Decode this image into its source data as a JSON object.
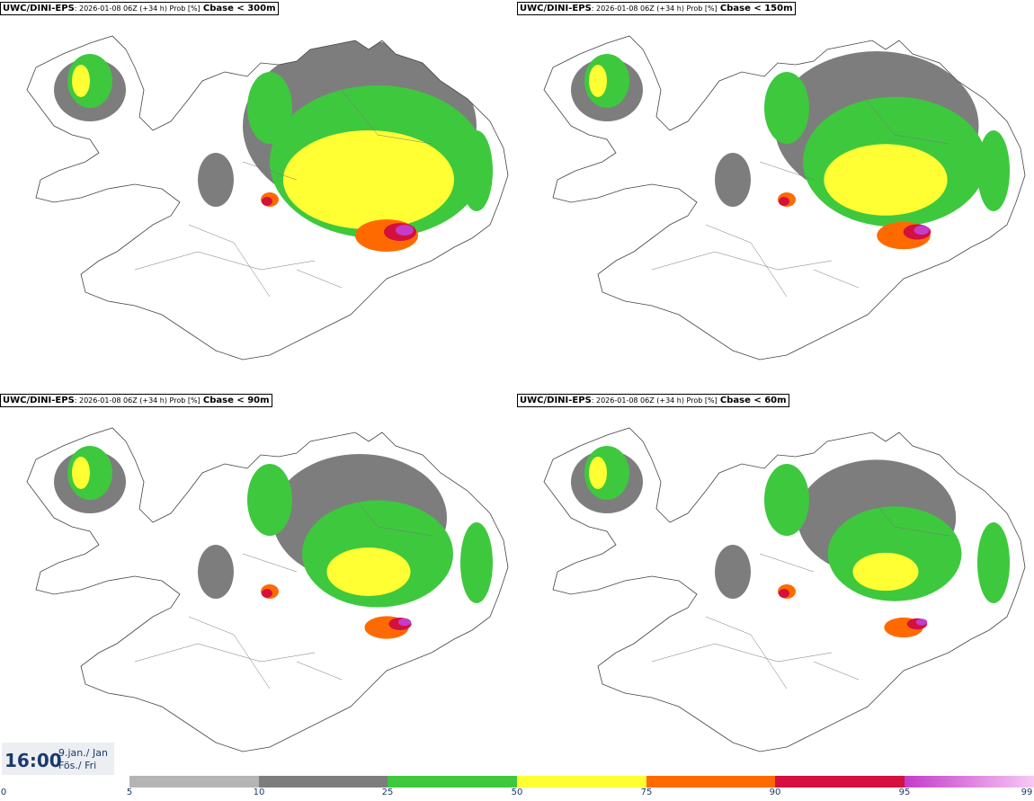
{
  "panels": [
    {
      "model": "UWC/DINI-EPS",
      "run": ": 2026-01-08 06Z (+34 h) Prob [%]",
      "field": "Cbase < 300m"
    },
    {
      "model": "UWC/DINI-EPS",
      "run": ": 2026-01-08 06Z (+34 h) Prob [%]",
      "field": "Cbase < 150m"
    },
    {
      "model": "UWC/DINI-EPS",
      "run": ": 2026-01-08 06Z (+34 h) Prob [%]",
      "field": "Cbase < 90m"
    },
    {
      "model": "UWC/DINI-EPS",
      "run": ": 2026-01-08 06Z (+34 h) Prob [%]",
      "field": "Cbase < 60m"
    }
  ],
  "valid_time": {
    "time": "16:00",
    "date": "9.jan./ Jan",
    "weekday": "Fös./ Fri"
  },
  "legend": {
    "ticks": [
      "0",
      "5",
      "10",
      "25",
      "50",
      "75",
      "90",
      "95",
      "99"
    ],
    "colors": [
      "#b4b4b4",
      "#7d7d7d",
      "#3ec83e",
      "#ffff33",
      "#ff6a00",
      "#d4103e",
      "#c43cc8",
      "#f7c8f5"
    ]
  }
}
